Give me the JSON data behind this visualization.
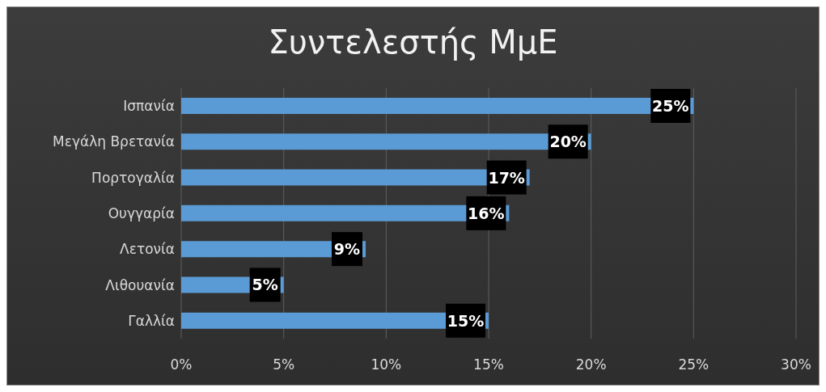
{
  "chart_data": {
    "type": "bar",
    "orientation": "horizontal",
    "title": "Συντελεστής ΜμΕ",
    "categories": [
      "Ισπανία",
      "Μεγάλη Βρετανία",
      "Πορτογαλία",
      "Ουγγαρία",
      "Λετονία",
      "Λιθουανία",
      "Γαλλία"
    ],
    "values": [
      25,
      20,
      17,
      16,
      9,
      5,
      15
    ],
    "value_labels": [
      "25%",
      "20%",
      "17%",
      "16%",
      "9%",
      "5%",
      "15%"
    ],
    "color": "#5b9bd5",
    "xlim": [
      0,
      30
    ],
    "xticks": [
      {
        "value": 0,
        "label": "0%"
      },
      {
        "value": 5,
        "label": "5%"
      },
      {
        "value": 10,
        "label": "10%"
      },
      {
        "value": 15,
        "label": "15%"
      },
      {
        "value": 20,
        "label": "20%"
      },
      {
        "value": 25,
        "label": "25%"
      },
      {
        "value": 30,
        "label": "30%"
      }
    ],
    "grid": "x",
    "legend": false
  }
}
